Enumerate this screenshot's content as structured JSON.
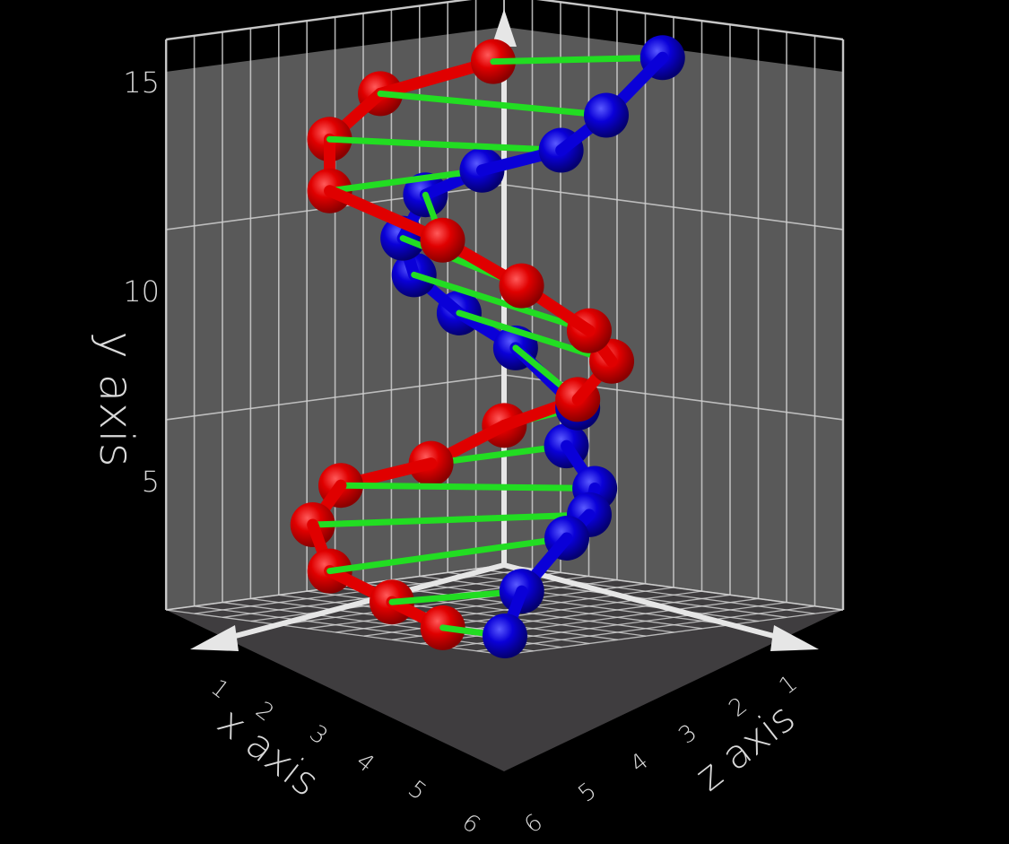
{
  "chart_data": {
    "type": "scatter3d",
    "axes": {
      "x": {
        "label": "x axis",
        "range": [
          0,
          6
        ],
        "ticks": [
          "1",
          "2",
          "3",
          "4",
          "5",
          "6"
        ]
      },
      "y": {
        "label": "y axis",
        "range": [
          0,
          15
        ],
        "ticks": [
          "5",
          "10",
          "15"
        ]
      },
      "z": {
        "label": "z axis",
        "range": [
          0,
          6
        ],
        "ticks": [
          "1",
          "2",
          "3",
          "4",
          "5",
          "6"
        ]
      }
    },
    "grid": true,
    "colors": {
      "background": "#000000",
      "wall": "#595959",
      "floor": "#3f3d3f",
      "grid": "#cfcfcf",
      "strand_a": "#e00000",
      "strand_b": "#0a00d8",
      "bond": "#22dd22"
    },
    "series": [
      {
        "color": "#e00000",
        "points": [
          [
            5.0,
            0.1,
            3.9
          ],
          [
            5.0,
            0.6,
            3.0
          ],
          [
            5.0,
            1.2,
            1.9
          ],
          [
            4.6,
            2.2,
            1.2
          ],
          [
            3.5,
            2.9,
            0.6
          ],
          [
            2.5,
            3.4,
            1.2
          ],
          [
            1.6,
            4.3,
            1.6
          ],
          [
            1.5,
            5.2,
            2.8
          ],
          [
            1.7,
            6.4,
            3.6
          ],
          [
            2.4,
            7.4,
            3.9
          ],
          [
            3.3,
            8.7,
            3.6
          ],
          [
            4.0,
            9.9,
            2.9
          ],
          [
            4.5,
            11.0,
            1.4
          ],
          [
            4.1,
            12.2,
            1.0
          ],
          [
            3.4,
            13.3,
            1.2
          ],
          [
            2.8,
            14.3,
            2.6
          ]
        ]
      },
      {
        "color": "#0a00d8",
        "points": [
          [
            5.0,
            0.1,
            5.0
          ],
          [
            4.4,
            1.1,
            4.7
          ],
          [
            3.5,
            2.3,
            4.6
          ],
          [
            2.5,
            2.6,
            4.0
          ],
          [
            1.7,
            3.0,
            3.3
          ],
          [
            1.4,
            3.9,
            2.5
          ],
          [
            1.3,
            4.9,
            2.6
          ],
          [
            1.4,
            6.3,
            1.6
          ],
          [
            1.6,
            7.1,
            0.8
          ],
          [
            2.5,
            8.3,
            0.9
          ],
          [
            2.7,
            9.3,
            0.9
          ],
          [
            2.9,
            10.6,
            1.5
          ],
          [
            3.3,
            11.6,
            2.9
          ],
          [
            3.3,
            12.4,
            4.3
          ],
          [
            3.1,
            13.4,
            4.9
          ],
          [
            1.8,
            14.6,
            4.6
          ]
        ]
      }
    ],
    "bonds": "each red point linked to the blue point of the same index"
  }
}
